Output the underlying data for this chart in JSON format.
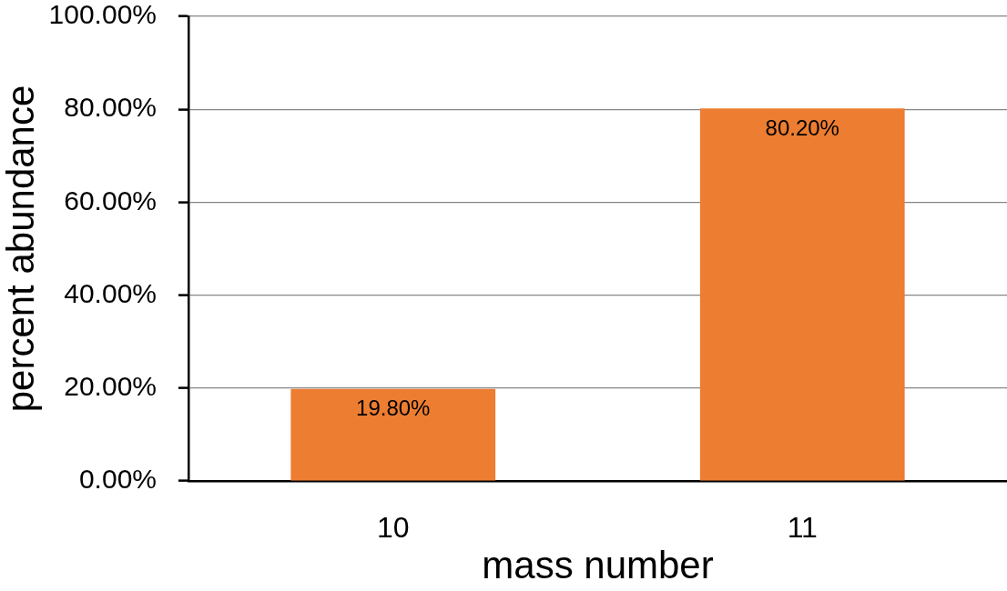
{
  "chart_data": {
    "type": "bar",
    "categories": [
      "10",
      "11"
    ],
    "values": [
      19.8,
      80.2
    ],
    "value_labels": [
      "19.80%",
      "80.20%"
    ],
    "color": "#ed7d31",
    "xlabel": "mass number",
    "ylabel": "percent abundance",
    "ylim": [
      0,
      100
    ],
    "yticks": [
      {
        "value": 0,
        "label": "0.00%"
      },
      {
        "value": 20,
        "label": "20.00%"
      },
      {
        "value": 40,
        "label": "40.00%"
      },
      {
        "value": 60,
        "label": "60.00%"
      },
      {
        "value": 80,
        "label": "80.00%"
      },
      {
        "value": 100,
        "label": "100.00%"
      }
    ],
    "grid": "y"
  }
}
